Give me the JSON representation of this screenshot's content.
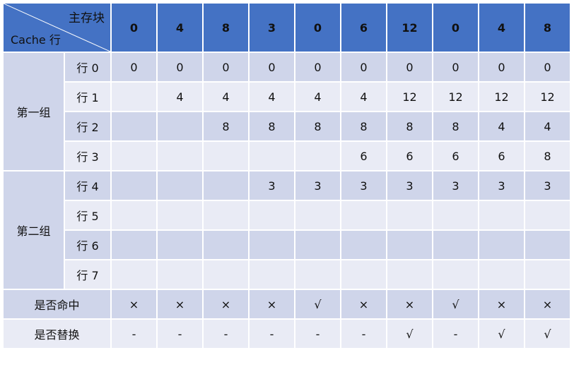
{
  "header": {
    "corner_top": "主存块",
    "corner_bottom": "Cache 行",
    "blocks": [
      "0",
      "4",
      "8",
      "3",
      "0",
      "6",
      "12",
      "0",
      "4",
      "8"
    ]
  },
  "groups": [
    {
      "label": "第一组"
    },
    {
      "label": "第二组"
    }
  ],
  "lines": [
    {
      "label": "行 0",
      "cells": [
        {
          "v": "0",
          "c": "green"
        },
        {
          "v": "0",
          "c": "black"
        },
        {
          "v": "0",
          "c": "black"
        },
        {
          "v": "0",
          "c": "black"
        },
        {
          "v": "0",
          "c": "green"
        },
        {
          "v": "0",
          "c": "black"
        },
        {
          "v": "0",
          "c": "black"
        },
        {
          "v": "0",
          "c": "green"
        },
        {
          "v": "0",
          "c": "black"
        },
        {
          "v": "0",
          "c": "black"
        }
      ]
    },
    {
      "label": "行 1",
      "cells": [
        {
          "v": "",
          "c": "black"
        },
        {
          "v": "4",
          "c": "green"
        },
        {
          "v": "4",
          "c": "black"
        },
        {
          "v": "4",
          "c": "black"
        },
        {
          "v": "4",
          "c": "black"
        },
        {
          "v": "4",
          "c": "black"
        },
        {
          "v": "12",
          "c": "red"
        },
        {
          "v": "12",
          "c": "black"
        },
        {
          "v": "12",
          "c": "black"
        },
        {
          "v": "12",
          "c": "black"
        }
      ]
    },
    {
      "label": "行 2",
      "cells": [
        {
          "v": "",
          "c": "black"
        },
        {
          "v": "",
          "c": "black"
        },
        {
          "v": "8",
          "c": "green"
        },
        {
          "v": "8",
          "c": "black"
        },
        {
          "v": "8",
          "c": "black"
        },
        {
          "v": "8",
          "c": "black"
        },
        {
          "v": "8",
          "c": "black"
        },
        {
          "v": "8",
          "c": "black"
        },
        {
          "v": "4",
          "c": "red"
        },
        {
          "v": "4",
          "c": "black"
        }
      ]
    },
    {
      "label": "行 3",
      "cells": [
        {
          "v": "",
          "c": "black"
        },
        {
          "v": "",
          "c": "black"
        },
        {
          "v": "",
          "c": "black"
        },
        {
          "v": "",
          "c": "black"
        },
        {
          "v": "",
          "c": "black"
        },
        {
          "v": "6",
          "c": "green"
        },
        {
          "v": "6",
          "c": "black"
        },
        {
          "v": "6",
          "c": "black"
        },
        {
          "v": "6",
          "c": "black"
        },
        {
          "v": "8",
          "c": "red"
        }
      ]
    },
    {
      "label": "行 4",
      "cells": [
        {
          "v": "",
          "c": "black"
        },
        {
          "v": "",
          "c": "black"
        },
        {
          "v": "",
          "c": "black"
        },
        {
          "v": "3",
          "c": "green"
        },
        {
          "v": "3",
          "c": "black"
        },
        {
          "v": "3",
          "c": "black"
        },
        {
          "v": "3",
          "c": "black"
        },
        {
          "v": "3",
          "c": "black"
        },
        {
          "v": "3",
          "c": "black"
        },
        {
          "v": "3",
          "c": "black"
        }
      ]
    },
    {
      "label": "行 5",
      "cells": [
        {
          "v": "",
          "c": "black"
        },
        {
          "v": "",
          "c": "black"
        },
        {
          "v": "",
          "c": "black"
        },
        {
          "v": "",
          "c": "black"
        },
        {
          "v": "",
          "c": "black"
        },
        {
          "v": "",
          "c": "black"
        },
        {
          "v": "",
          "c": "black"
        },
        {
          "v": "",
          "c": "black"
        },
        {
          "v": "",
          "c": "black"
        },
        {
          "v": "",
          "c": "black"
        }
      ]
    },
    {
      "label": "行 6",
      "cells": [
        {
          "v": "",
          "c": "black"
        },
        {
          "v": "",
          "c": "black"
        },
        {
          "v": "",
          "c": "black"
        },
        {
          "v": "",
          "c": "black"
        },
        {
          "v": "",
          "c": "black"
        },
        {
          "v": "",
          "c": "black"
        },
        {
          "v": "",
          "c": "black"
        },
        {
          "v": "",
          "c": "black"
        },
        {
          "v": "",
          "c": "black"
        },
        {
          "v": "",
          "c": "black"
        }
      ]
    },
    {
      "label": "行 7",
      "cells": [
        {
          "v": "",
          "c": "black"
        },
        {
          "v": "",
          "c": "black"
        },
        {
          "v": "",
          "c": "black"
        },
        {
          "v": "",
          "c": "black"
        },
        {
          "v": "",
          "c": "black"
        },
        {
          "v": "",
          "c": "black"
        },
        {
          "v": "",
          "c": "black"
        },
        {
          "v": "",
          "c": "black"
        },
        {
          "v": "",
          "c": "black"
        },
        {
          "v": "",
          "c": "black"
        }
      ]
    }
  ],
  "summary": [
    {
      "label": "是否命中",
      "cells": [
        "×",
        "×",
        "×",
        "×",
        "√",
        "×",
        "×",
        "√",
        "×",
        "×"
      ]
    },
    {
      "label": "是否替换",
      "cells": [
        "-",
        "-",
        "-",
        "-",
        "-",
        "-",
        "√",
        "-",
        "√",
        "√"
      ]
    }
  ],
  "colors": {
    "header_bg": "#4472c4",
    "row_dark": "#cfd5ea",
    "row_light": "#e9ebf5",
    "hit_green": "#70ad47",
    "replace_red": "#e02020"
  }
}
